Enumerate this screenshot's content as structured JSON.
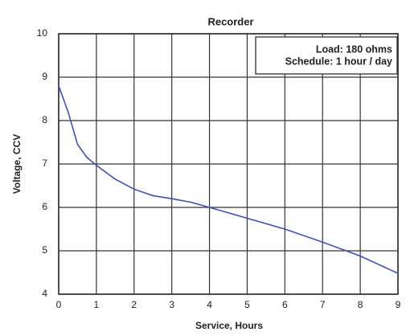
{
  "chart_data": {
    "type": "line",
    "title": "Recorder",
    "annotations": [
      "Load: 180 ohms",
      "Schedule: 1 hour / day"
    ],
    "xlabel": "Service, Hours",
    "ylabel": "Voltage, CCV",
    "x": [
      0,
      0.25,
      0.5,
      0.75,
      1,
      1.5,
      2,
      2.5,
      3,
      3.5,
      4,
      5,
      6,
      7,
      8,
      9
    ],
    "series": [
      {
        "name": "Recorder",
        "color": "#3a4fc4",
        "values": [
          8.8,
          8.2,
          7.45,
          7.15,
          6.97,
          6.65,
          6.42,
          6.27,
          6.2,
          6.12,
          6.0,
          5.75,
          5.5,
          5.2,
          4.88,
          4.48
        ]
      }
    ],
    "xlim": [
      0,
      9
    ],
    "xticks": [
      0,
      1,
      2,
      3,
      4,
      5,
      6,
      7,
      8,
      9
    ],
    "ylim": [
      4,
      10
    ],
    "yticks": [
      4,
      5,
      6,
      7,
      8,
      9,
      10
    ],
    "grid": true
  }
}
